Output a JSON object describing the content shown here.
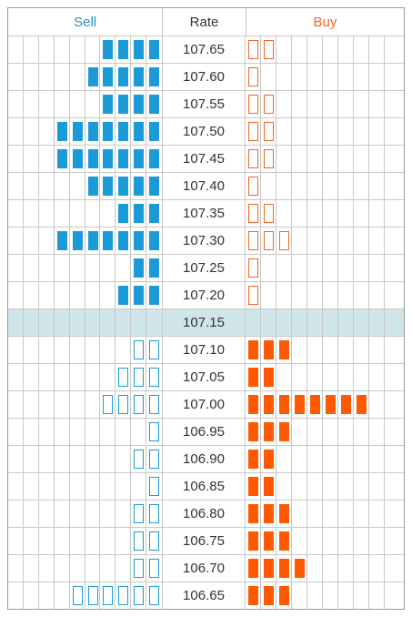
{
  "header": {
    "sell": "Sell",
    "rate": "Rate",
    "buy": "Buy"
  },
  "colors": {
    "sell": "#1a9bd7",
    "buy": "#ff5a00",
    "current_row": "#cfe5ea"
  },
  "current_rate": "107.15",
  "rows": [
    {
      "rate": "107.65",
      "sell": 4,
      "sell_style": "filled",
      "buy": 2,
      "buy_style": "outline"
    },
    {
      "rate": "107.60",
      "sell": 5,
      "sell_style": "filled",
      "buy": 1,
      "buy_style": "outline"
    },
    {
      "rate": "107.55",
      "sell": 4,
      "sell_style": "filled",
      "buy": 2,
      "buy_style": "outline"
    },
    {
      "rate": "107.50",
      "sell": 7,
      "sell_style": "filled",
      "buy": 2,
      "buy_style": "outline"
    },
    {
      "rate": "107.45",
      "sell": 7,
      "sell_style": "filled",
      "buy": 2,
      "buy_style": "outline"
    },
    {
      "rate": "107.40",
      "sell": 5,
      "sell_style": "filled",
      "buy": 1,
      "buy_style": "outline"
    },
    {
      "rate": "107.35",
      "sell": 3,
      "sell_style": "filled",
      "buy": 2,
      "buy_style": "outline"
    },
    {
      "rate": "107.30",
      "sell": 7,
      "sell_style": "filled",
      "buy": 3,
      "buy_style": "outline"
    },
    {
      "rate": "107.25",
      "sell": 2,
      "sell_style": "filled",
      "buy": 1,
      "buy_style": "outline"
    },
    {
      "rate": "107.20",
      "sell": 3,
      "sell_style": "filled",
      "buy": 1,
      "buy_style": "outline"
    },
    {
      "rate": "107.15",
      "sell": 0,
      "sell_style": "filled",
      "buy": 0,
      "buy_style": "filled"
    },
    {
      "rate": "107.10",
      "sell": 2,
      "sell_style": "outline",
      "buy": 3,
      "buy_style": "filled"
    },
    {
      "rate": "107.05",
      "sell": 3,
      "sell_style": "outline",
      "buy": 2,
      "buy_style": "filled"
    },
    {
      "rate": "107.00",
      "sell": 4,
      "sell_style": "outline",
      "buy": 8,
      "buy_style": "filled"
    },
    {
      "rate": "106.95",
      "sell": 1,
      "sell_style": "outline",
      "buy": 3,
      "buy_style": "filled"
    },
    {
      "rate": "106.90",
      "sell": 2,
      "sell_style": "outline",
      "buy": 2,
      "buy_style": "filled"
    },
    {
      "rate": "106.85",
      "sell": 1,
      "sell_style": "outline",
      "buy": 2,
      "buy_style": "filled"
    },
    {
      "rate": "106.80",
      "sell": 2,
      "sell_style": "outline",
      "buy": 3,
      "buy_style": "filled"
    },
    {
      "rate": "106.75",
      "sell": 2,
      "sell_style": "outline",
      "buy": 3,
      "buy_style": "filled"
    },
    {
      "rate": "106.70",
      "sell": 2,
      "sell_style": "outline",
      "buy": 4,
      "buy_style": "filled"
    },
    {
      "rate": "106.65",
      "sell": 6,
      "sell_style": "outline",
      "buy": 3,
      "buy_style": "filled"
    }
  ]
}
